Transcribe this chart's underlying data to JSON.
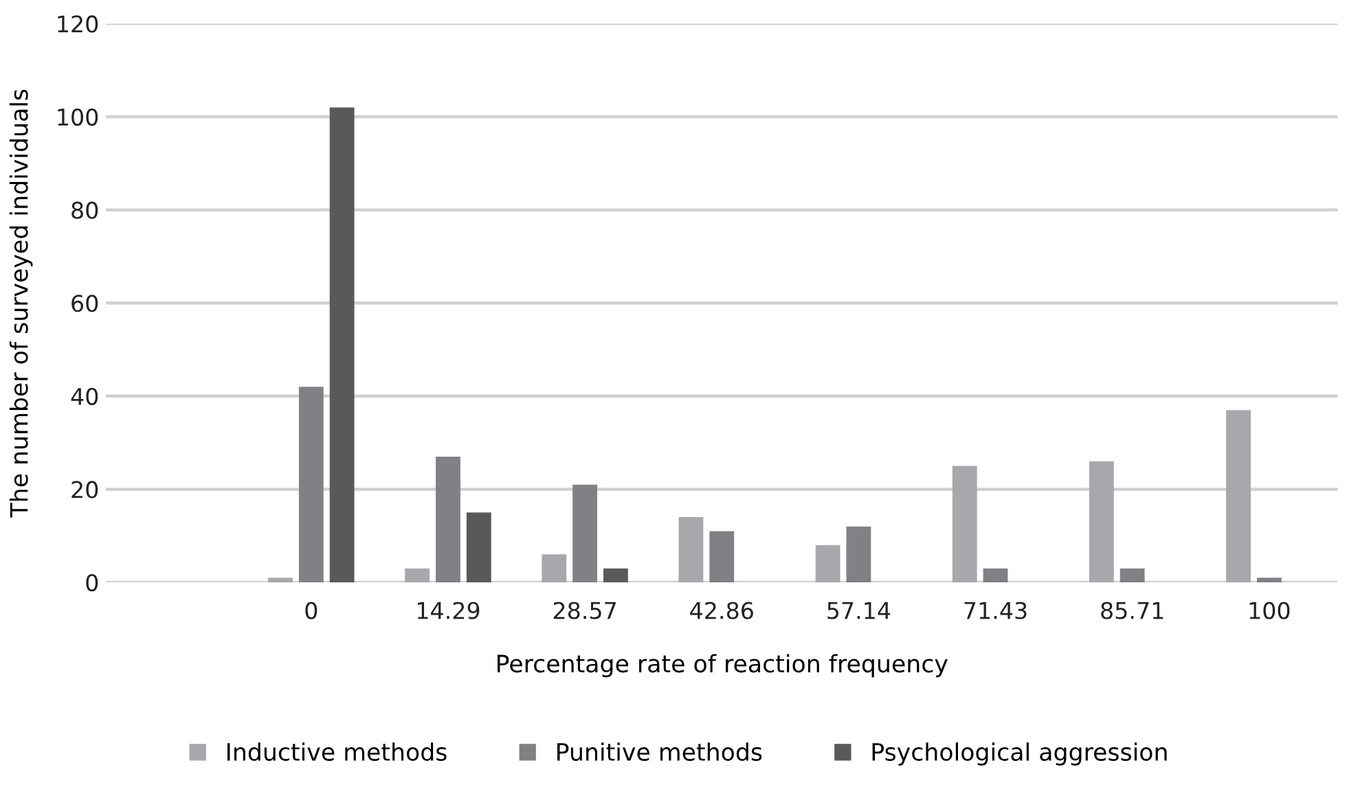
{
  "chart_data": {
    "type": "bar",
    "xlabel": "Percentage rate of reaction frequency",
    "ylabel": "The number of surveyed individuals",
    "categories": [
      null,
      "0",
      "14.29",
      "28.57",
      "42.86",
      "57.14",
      "71.43",
      "85.71",
      "100"
    ],
    "series": [
      {
        "name": "Inductive methods",
        "color": "#a7a8ab",
        "values": [
          null,
          1,
          3,
          6,
          14,
          8,
          25,
          26,
          37
        ]
      },
      {
        "name": "Punitive methods",
        "color": "#808184",
        "values": [
          null,
          42,
          27,
          21,
          11,
          12,
          3,
          3,
          1
        ]
      },
      {
        "name": "Psychological aggression",
        "color": "#58595b",
        "values": [
          null,
          102,
          15,
          3,
          0,
          0,
          0,
          0,
          0
        ]
      }
    ],
    "ylim": [
      0,
      120
    ],
    "yticks": [
      0,
      20,
      40,
      60,
      80,
      100,
      120
    ],
    "grid": "y",
    "legend": "bottom"
  }
}
